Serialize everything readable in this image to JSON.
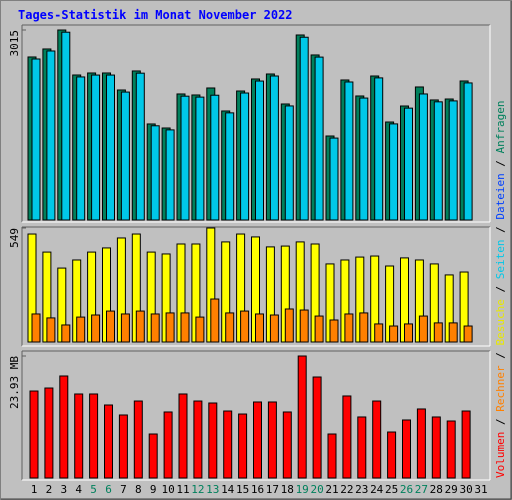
{
  "title": "Tages-Statistik im Monat November 2022",
  "legend_separator": " / ",
  "legend": [
    {
      "name": "Anfragen",
      "color": "#00805c"
    },
    {
      "name": "Dateien",
      "color": "#0040ff"
    },
    {
      "name": "Seiten",
      "color": "#00c8e8"
    },
    {
      "name": "Besuche",
      "color": "#e8e800"
    },
    {
      "name": "Rechner",
      "color": "#ff8000"
    },
    {
      "name": "Volumen",
      "color": "#ff0000"
    }
  ],
  "weekend_color": "#00805c",
  "weekend_days": [
    "5",
    "6",
    "12",
    "13",
    "19",
    "20",
    "26",
    "27"
  ],
  "chart_data": [
    {
      "type": "bar",
      "ylim": [
        0,
        3015
      ],
      "yticks": [
        3015
      ],
      "series": [
        {
          "color": "#00805c",
          "values": [
            2587,
            2714,
            3015,
            2301,
            2333,
            2333,
            2063,
            2365,
            1524,
            1460,
            2000,
            1984,
            2095,
            1730,
            2047,
            2238,
            2317,
            1841,
            2936,
            2619,
            1333,
            2222,
            1968,
            2285,
            1555,
            1809,
            2111,
            1905,
            1920,
            2206,
            null
          ]
        },
        {
          "color": "#00c8e8",
          "values": [
            2555,
            2682,
            2980,
            2270,
            2300,
            2300,
            2030,
            2330,
            1495,
            1430,
            1965,
            1950,
            1980,
            1700,
            2015,
            2205,
            2285,
            1810,
            2900,
            2585,
            1300,
            2190,
            1935,
            2255,
            1525,
            1775,
            2000,
            1875,
            1890,
            2175,
            null
          ]
        }
      ]
    },
    {
      "type": "bar",
      "ylim": [
        0,
        549
      ],
      "yticks": [
        549
      ],
      "series": [
        {
          "color": "#ffff00",
          "values": [
            520,
            433,
            356,
            395,
            433,
            453,
            501,
            520,
            433,
            424,
            472,
            472,
            549,
            482,
            520,
            506,
            458,
            462,
            482,
            472,
            376,
            395,
            409,
            414,
            366,
            405,
            395,
            376,
            323,
            337,
            null
          ]
        },
        {
          "color": "#ff8000",
          "values": [
            135,
            116,
            82,
            120,
            130,
            149,
            135,
            149,
            135,
            140,
            140,
            120,
            207,
            140,
            149,
            135,
            130,
            159,
            154,
            125,
            106,
            135,
            140,
            87,
            77,
            87,
            125,
            92,
            92,
            77,
            null
          ]
        }
      ]
    },
    {
      "type": "bar",
      "ylim": [
        0,
        23.93
      ],
      "yticks": [
        {
          "value": 23.93,
          "label": "23.93 MB"
        }
      ],
      "categories": [
        "1",
        "2",
        "3",
        "4",
        "5",
        "6",
        "7",
        "8",
        "9",
        "10",
        "11",
        "12",
        "13",
        "14",
        "15",
        "16",
        "17",
        "18",
        "19",
        "20",
        "21",
        "22",
        "23",
        "24",
        "25",
        "26",
        "27",
        "28",
        "29",
        "30",
        "31"
      ],
      "series": [
        {
          "color": "#ff0000",
          "values": [
            17.06,
            17.65,
            20.01,
            16.48,
            16.48,
            14.32,
            12.36,
            15.1,
            8.63,
            12.95,
            16.48,
            15.1,
            14.71,
            13.14,
            12.55,
            14.91,
            14.91,
            12.95,
            23.93,
            19.81,
            8.63,
            16.09,
            11.97,
            15.1,
            9.02,
            11.38,
            13.54,
            11.97,
            11.18,
            13.14,
            null
          ]
        }
      ]
    }
  ]
}
